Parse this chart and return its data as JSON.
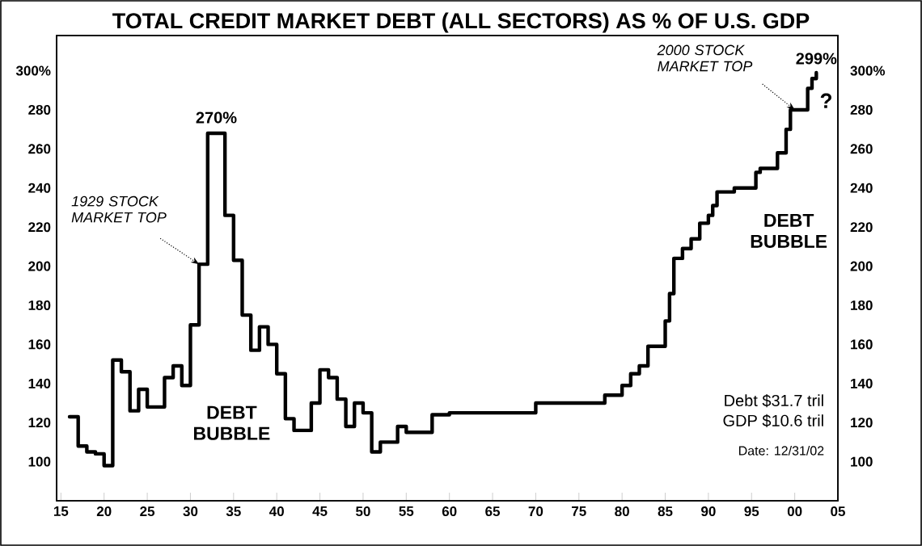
{
  "chart_data": {
    "type": "step",
    "title": "TOTAL CREDIT MARKET DEBT (ALL SECTORS) AS % OF U.S. GDP",
    "color": "#000000",
    "x": [
      1916,
      1917,
      1918,
      1919,
      1920,
      1921,
      1922,
      1923,
      1924,
      1925,
      1927,
      1928,
      1929,
      1930,
      1931,
      1932,
      1934,
      1935,
      1936,
      1937,
      1938,
      1939,
      1940,
      1941,
      1942,
      1944,
      1945,
      1946,
      1947,
      1948,
      1949,
      1950,
      1951,
      1952,
      1954,
      1955,
      1958,
      1960,
      1970,
      1978,
      1980,
      1981,
      1982,
      1983,
      1985,
      1985.5,
      1986,
      1987,
      1988,
      1989,
      1990,
      1990.5,
      1991,
      1993,
      1995.5,
      1996,
      1998,
      1999,
      1999.5,
      2001.5,
      2002,
      2002.5
    ],
    "values": [
      123,
      108,
      105,
      104,
      98,
      152,
      146,
      126,
      137,
      128,
      143,
      149,
      139,
      170,
      201,
      268,
      226,
      203,
      175,
      157,
      169,
      160,
      145,
      122,
      116,
      130,
      147,
      143,
      132,
      118,
      130,
      125,
      105,
      110,
      118,
      115,
      124,
      125,
      130,
      134,
      139,
      145,
      149,
      159,
      172,
      186,
      204,
      209,
      214,
      222,
      226,
      231,
      238,
      240,
      248,
      250,
      258,
      270,
      280,
      291,
      296,
      299
    ],
    "xlim": [
      1914.5,
      2005
    ],
    "xticks": [
      {
        "value": 1915,
        "label": "15"
      },
      {
        "value": 1920,
        "label": "20"
      },
      {
        "value": 1925,
        "label": "25"
      },
      {
        "value": 1930,
        "label": "30"
      },
      {
        "value": 1935,
        "label": "35"
      },
      {
        "value": 1940,
        "label": "40"
      },
      {
        "value": 1945,
        "label": "45"
      },
      {
        "value": 1950,
        "label": "50"
      },
      {
        "value": 1955,
        "label": "55"
      },
      {
        "value": 1960,
        "label": "60"
      },
      {
        "value": 1965,
        "label": "65"
      },
      {
        "value": 1970,
        "label": "70"
      },
      {
        "value": 1975,
        "label": "75"
      },
      {
        "value": 1980,
        "label": "80"
      },
      {
        "value": 1985,
        "label": "85"
      },
      {
        "value": 1990,
        "label": "90"
      },
      {
        "value": 1995,
        "label": "95"
      },
      {
        "value": 2000,
        "label": "00"
      },
      {
        "value": 2005,
        "label": "05"
      }
    ],
    "ylim": [
      80,
      318
    ],
    "yticks": [
      100,
      120,
      140,
      160,
      180,
      200,
      220,
      240,
      260,
      280,
      {
        "value": 300,
        "label": "300%"
      }
    ],
    "y2lim": [
      80,
      318
    ],
    "y2ticks": [
      100,
      120,
      140,
      160,
      180,
      200,
      220,
      240,
      260,
      280,
      {
        "value": 300,
        "label": "300%"
      }
    ],
    "annotations": [
      {
        "text": "270%",
        "x": 1933,
        "y": 268
      },
      {
        "text": "1929 STOCK MARKET TOP",
        "x": 1931,
        "y": 201
      },
      {
        "text": "299%",
        "x": 2002.5,
        "y": 299
      },
      {
        "text": "2000 STOCK MARKET TOP",
        "x": 2000,
        "y": 280
      },
      "?",
      "DEBT BUBBLE",
      "DEBT BUBBLE",
      "Debt $31.7 tril",
      "GDP $10.6 tril",
      "Date: 12/31/02"
    ]
  }
}
